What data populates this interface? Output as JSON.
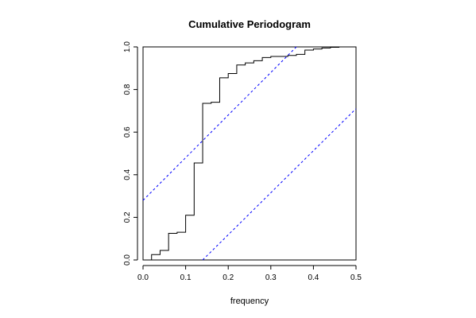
{
  "chart_data": {
    "type": "line",
    "title": "Cumulative Periodogram",
    "xlabel": "frequency",
    "ylabel": "",
    "xlim": [
      0.0,
      0.5
    ],
    "ylim": [
      0.0,
      1.0
    ],
    "x_ticks": [
      0.0,
      0.1,
      0.2,
      0.3,
      0.4,
      0.5
    ],
    "x_tick_labels": [
      "0.0",
      "0.1",
      "0.2",
      "0.3",
      "0.4",
      "0.5"
    ],
    "y_ticks": [
      0.0,
      0.2,
      0.4,
      0.6,
      0.8,
      1.0
    ],
    "y_tick_labels": [
      "0.0",
      "0.2",
      "0.4",
      "0.6",
      "0.8",
      "1.0"
    ],
    "grid": false,
    "legend": "none",
    "series": [
      {
        "style": "step",
        "color": "#000000",
        "x": [
          0.02,
          0.02,
          0.04,
          0.04,
          0.06,
          0.06,
          0.08,
          0.08,
          0.1,
          0.1,
          0.12,
          0.12,
          0.14,
          0.14,
          0.16,
          0.16,
          0.18,
          0.18,
          0.2,
          0.2,
          0.22,
          0.22,
          0.24,
          0.24,
          0.26,
          0.26,
          0.28,
          0.28,
          0.3,
          0.3,
          0.34,
          0.34,
          0.36,
          0.36,
          0.38,
          0.38,
          0.4,
          0.4,
          0.42,
          0.42,
          0.44,
          0.44,
          0.46,
          0.46,
          0.48
        ],
        "y": [
          0.0,
          0.025,
          0.025,
          0.045,
          0.045,
          0.125,
          0.125,
          0.13,
          0.13,
          0.21,
          0.21,
          0.455,
          0.455,
          0.735,
          0.735,
          0.74,
          0.74,
          0.855,
          0.855,
          0.875,
          0.875,
          0.915,
          0.915,
          0.925,
          0.925,
          0.935,
          0.935,
          0.95,
          0.95,
          0.955,
          0.955,
          0.96,
          0.96,
          0.965,
          0.965,
          0.985,
          0.985,
          0.99,
          0.99,
          0.995,
          0.995,
          0.998,
          0.998,
          1.0,
          1.0
        ]
      },
      {
        "style": "dashed",
        "color": "#0000ff",
        "x": [
          0.0,
          0.36
        ],
        "y": [
          0.28,
          1.0
        ]
      },
      {
        "style": "dashed",
        "color": "#0000ff",
        "x": [
          0.14,
          0.5
        ],
        "y": [
          0.0,
          0.71
        ]
      }
    ]
  }
}
